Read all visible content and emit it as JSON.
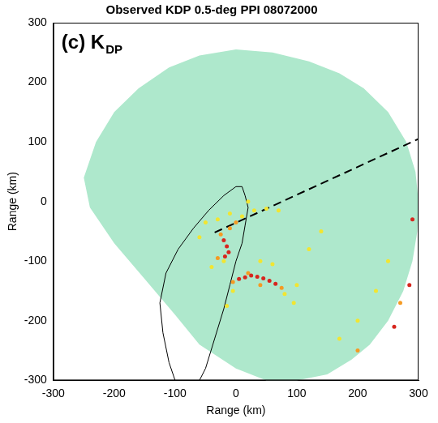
{
  "chart_data": {
    "type": "scatter",
    "title": "Observed KDP 0.5-deg PPI 08072000",
    "panel_label": {
      "text": "(c) K",
      "subscript": "DP"
    },
    "x_label": "Range (km)",
    "y_label": "Range (km)",
    "xlim": [
      -300,
      300
    ],
    "ylim": [
      -300,
      300
    ],
    "xticks": [
      -300,
      -200,
      -100,
      0,
      100,
      200,
      300
    ],
    "yticks": [
      -300,
      -200,
      -100,
      0,
      100,
      200,
      300
    ],
    "grid": false,
    "series": [
      {
        "type": "area",
        "color": "#aee8cc",
        "x": [
          0,
          60,
          120,
          170,
          210,
          250,
          280,
          295,
          300,
          298,
          290,
          275,
          250,
          220,
          190,
          150,
          100,
          50,
          0,
          -60,
          -100,
          -150,
          -200,
          -240,
          -250,
          -230,
          -200,
          -160,
          -110,
          -60
        ],
        "values": [
          255,
          250,
          235,
          215,
          190,
          150,
          100,
          50,
          0,
          -50,
          -100,
          -150,
          -200,
          -240,
          -265,
          -290,
          -300,
          -300,
          -280,
          -240,
          -190,
          -130,
          -70,
          -10,
          40,
          100,
          150,
          190,
          225,
          245
        ]
      },
      {
        "type": "line",
        "color": "#000000",
        "line_style": "solid",
        "x": [
          -100,
          -110,
          -120,
          -125,
          -115,
          -95,
          -70,
          -45,
          -20,
          0,
          10,
          15,
          20,
          15,
          10,
          0,
          -10,
          -20,
          -35,
          -50,
          -60
        ],
        "values": [
          -300,
          -270,
          -220,
          -170,
          -120,
          -80,
          -45,
          -15,
          10,
          25,
          25,
          10,
          -10,
          -40,
          -70,
          -100,
          -140,
          -180,
          -230,
          -280,
          -300
        ]
      },
      {
        "type": "line",
        "color": "#000000",
        "line_style": "dashed",
        "x": [
          -35,
          300
        ],
        "values": [
          -52,
          105
        ]
      },
      {
        "type": "scatter",
        "color": "#f2e530",
        "marker": "circle",
        "x": [
          -10,
          -30,
          -50,
          10,
          30,
          50,
          70,
          -20,
          -40,
          80,
          95,
          100,
          -5,
          -15,
          60,
          40,
          120,
          140,
          20,
          -60,
          170,
          200,
          230,
          250
        ],
        "values": [
          -20,
          -30,
          -35,
          -25,
          -15,
          -12,
          -15,
          -100,
          -110,
          -155,
          -170,
          -140,
          -150,
          -175,
          -105,
          -100,
          -80,
          -50,
          0,
          -60,
          -230,
          -200,
          -150,
          -100
        ]
      },
      {
        "type": "scatter",
        "color": "#f59a23",
        "marker": "circle",
        "x": [
          -25,
          -10,
          0,
          -30,
          20,
          75,
          270,
          200,
          -5,
          40
        ],
        "values": [
          -55,
          -45,
          -35,
          -95,
          -120,
          -145,
          -170,
          -250,
          -135,
          -140
        ]
      },
      {
        "type": "scatter",
        "color": "#d7261e",
        "marker": "circle",
        "x": [
          -20,
          -15,
          -12,
          -18,
          5,
          15,
          25,
          35,
          45,
          55,
          65,
          285,
          260,
          290
        ],
        "values": [
          -65,
          -75,
          -85,
          -92,
          -130,
          -127,
          -124,
          -126,
          -129,
          -133,
          -138,
          -140,
          -210,
          -30
        ]
      }
    ]
  }
}
